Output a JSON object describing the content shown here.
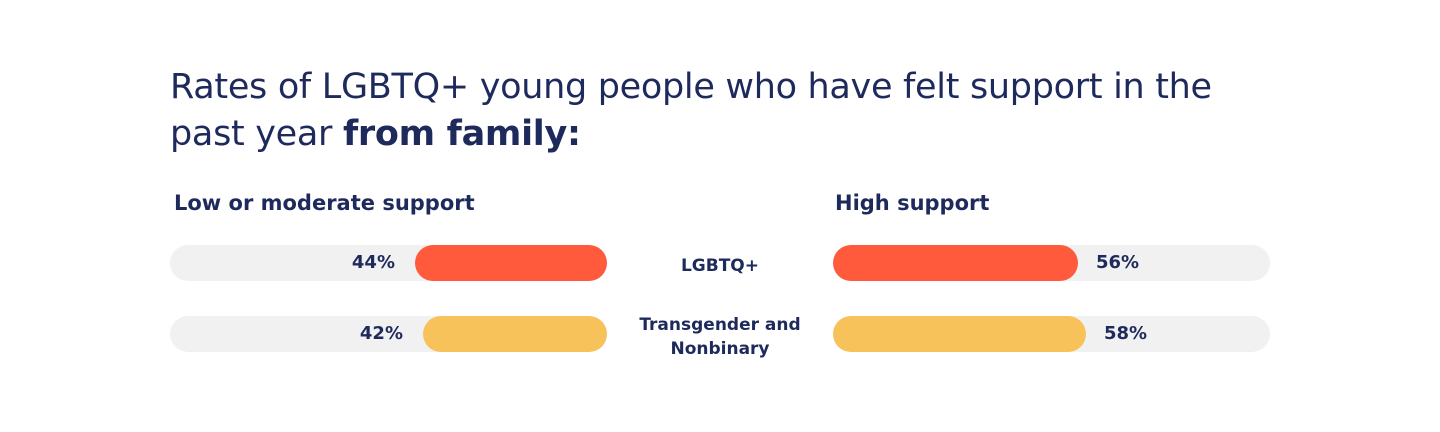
{
  "title": {
    "lead": "Rates of LGBTQ+ young people who have felt support in the past year ",
    "emphasis": "from family:"
  },
  "chart_data": {
    "type": "bar",
    "categories": [
      "LGBTQ+",
      "Transgender and Nonbinary"
    ],
    "series": [
      {
        "name": "Low or moderate support",
        "values": [
          44,
          42
        ]
      },
      {
        "name": "High support",
        "values": [
          56,
          58
        ]
      }
    ],
    "labels": {
      "low": [
        "44%",
        "42%"
      ],
      "high": [
        "56%",
        "58%"
      ]
    },
    "colors": [
      "#ff5a3c",
      "#f8c25a"
    ],
    "track_color": "#f1f1f1",
    "ylim": [
      0,
      100
    ]
  }
}
